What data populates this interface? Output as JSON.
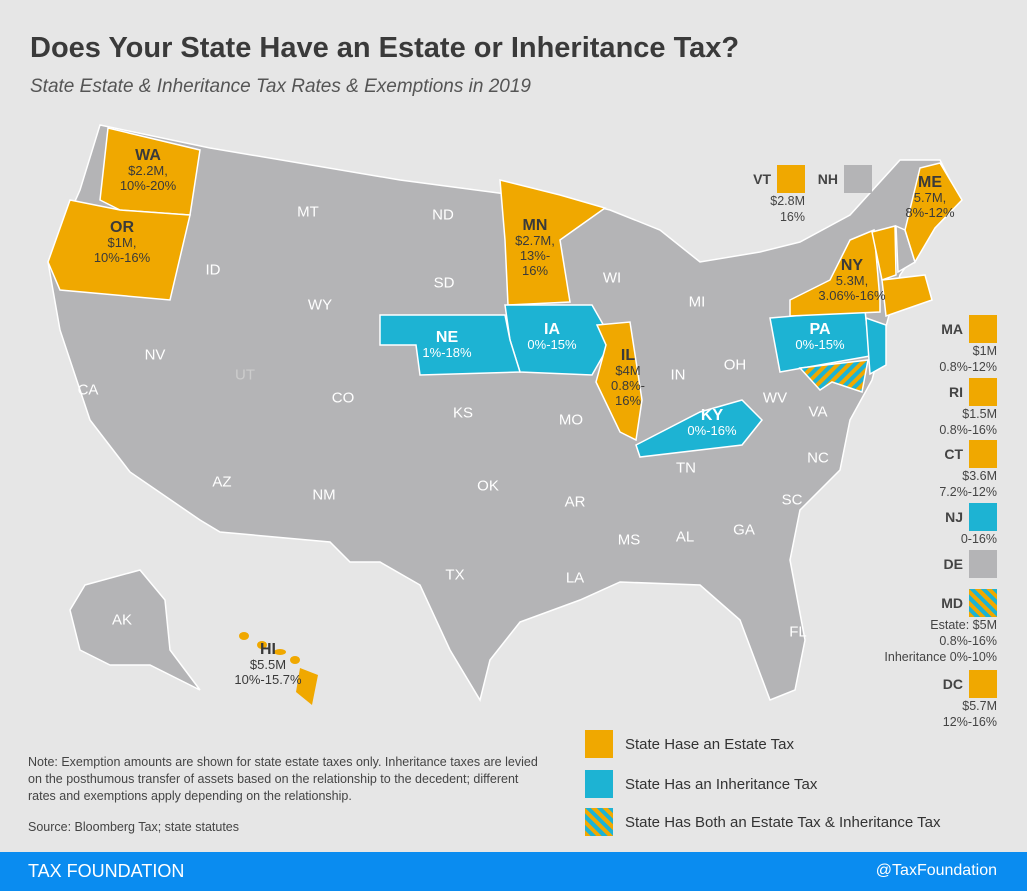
{
  "title": "Does Your State Have an Estate or Inheritance Tax?",
  "subtitle": "State Estate & Inheritance Tax Rates & Exemptions in 2019",
  "colors": {
    "estate": "#f0a800",
    "inheritance": "#1db3d3",
    "none": "#b4b4b6",
    "background": "#e6e6e6",
    "footer": "#0a8cf0"
  },
  "map_states": {
    "WA": {
      "abbr": "WA",
      "line1": "$2.2M,",
      "line2": "10%-20%",
      "type": "estate"
    },
    "OR": {
      "abbr": "OR",
      "line1": "$1M,",
      "line2": "10%-16%",
      "type": "estate"
    },
    "MN": {
      "abbr": "MN",
      "line1": "$2.7M,",
      "line2": "13%-",
      "line3": "16%",
      "type": "estate"
    },
    "NE": {
      "abbr": "NE",
      "line1": "1%-18%",
      "type": "inheritance"
    },
    "IA": {
      "abbr": "IA",
      "line1": "0%-15%",
      "type": "inheritance"
    },
    "IL": {
      "abbr": "IL",
      "line1": "$4M",
      "line2": "0.8%-",
      "line3": "16%",
      "type": "estate"
    },
    "KY": {
      "abbr": "KY",
      "line1": "0%-16%",
      "type": "inheritance"
    },
    "PA": {
      "abbr": "PA",
      "line1": "0%-15%",
      "type": "inheritance"
    },
    "NY": {
      "abbr": "NY",
      "line1": "5.3M,",
      "line2": "3.06%-16%",
      "type": "estate"
    },
    "ME": {
      "abbr": "ME",
      "line1": "5.7M,",
      "line2": "8%-12%",
      "type": "estate"
    },
    "HI": {
      "abbr": "HI",
      "line1": "$5.5M",
      "line2": "10%-15.7%",
      "type": "estate"
    }
  },
  "gray_labels": [
    "MT",
    "ND",
    "ID",
    "WY",
    "SD",
    "NV",
    "UT",
    "CA",
    "CO",
    "KS",
    "WI",
    "MI",
    "IN",
    "OH",
    "MO",
    "WV",
    "VA",
    "TN",
    "NC",
    "AZ",
    "NM",
    "OK",
    "AR",
    "SC",
    "TX",
    "MS",
    "AL",
    "GA",
    "LA",
    "FL",
    "AK"
  ],
  "side": {
    "VT": {
      "abbr": "VT",
      "line1": "$2.8M",
      "line2": "16%",
      "type": "estate"
    },
    "NH": {
      "abbr": "NH",
      "type": "none"
    },
    "MA": {
      "abbr": "MA",
      "line1": "$1M",
      "line2": "0.8%-12%",
      "type": "estate"
    },
    "RI": {
      "abbr": "RI",
      "line1": "$1.5M",
      "line2": "0.8%-16%",
      "type": "estate"
    },
    "CT": {
      "abbr": "CT",
      "line1": "$3.6M",
      "line2": "7.2%-12%",
      "type": "estate"
    },
    "NJ": {
      "abbr": "NJ",
      "line1": "0-16%",
      "type": "inheritance"
    },
    "DE": {
      "abbr": "DE",
      "type": "none"
    },
    "MD": {
      "abbr": "MD",
      "line1": "Estate: $5M",
      "line2": "0.8%-16%",
      "line3": "Inheritance 0%-10%",
      "type": "both"
    },
    "DC": {
      "abbr": "DC",
      "line1": "$5.7M",
      "line2": "12%-16%",
      "type": "estate"
    }
  },
  "legend": [
    {
      "label": "State Hase an Estate Tax",
      "type": "estate"
    },
    {
      "label": "State Has an Inheritance Tax",
      "type": "inheritance"
    },
    {
      "label": "State Has Both an Estate Tax & Inheritance Tax",
      "type": "both"
    }
  ],
  "note": "Note: Exemption amounts are shown for state estate taxes only. Inheritance taxes are levied on the posthumous transfer of assets based on the relationship to the decedent; different rates and exemptions apply depending on the relationship.",
  "source": "Source: Bloomberg Tax; state statutes",
  "footer": {
    "brand": "TAX FOUNDATION",
    "handle": "@TaxFoundation"
  }
}
